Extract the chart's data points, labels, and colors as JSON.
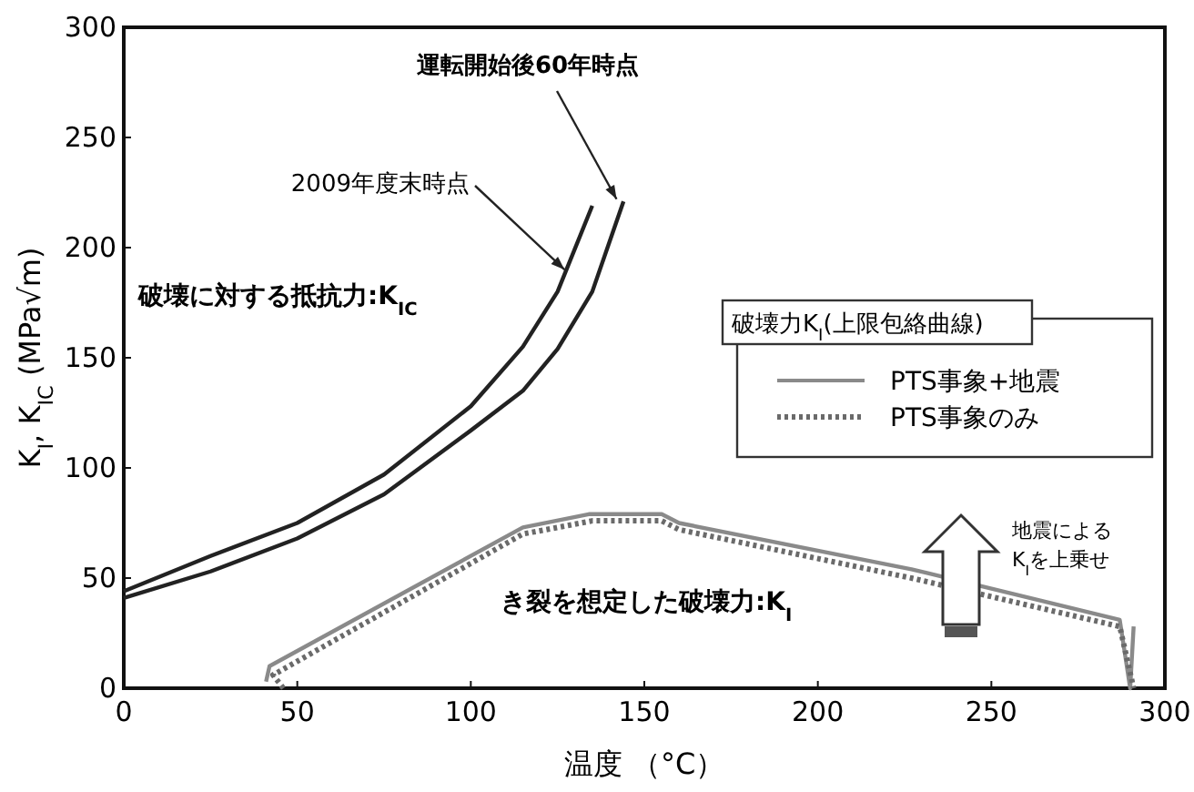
{
  "chart_data": {
    "type": "line",
    "xlabel": "温度 （°C）",
    "ylabel": "K$_{I}$, K$_{IC}$ (MPa√m)",
    "legend_title": "破壊力K$_{I}$(上限包絡曲線)",
    "legend": "right",
    "grid": false,
    "xlim": [
      0,
      300
    ],
    "ylim": [
      0,
      300
    ],
    "xticks": [
      0,
      50,
      100,
      150,
      200,
      250,
      300
    ],
    "yticks": [
      0,
      50,
      100,
      150,
      200,
      250,
      300
    ],
    "series": [
      {
        "color": "#222222",
        "line_style": "solid",
        "x": [
          0,
          25,
          50,
          75,
          100,
          115,
          125,
          135
        ],
        "values": [
          44,
          60,
          75,
          97,
          128,
          155,
          180,
          219
        ]
      },
      {
        "color": "#222222",
        "line_style": "solid",
        "x": [
          0,
          25,
          50,
          75,
          100,
          115,
          125,
          135,
          144
        ],
        "values": [
          41,
          53,
          68,
          88,
          117,
          135,
          154,
          180,
          221
        ]
      },
      {
        "name": "PTS事象+地震",
        "color": "#8a8a8a",
        "line_style": "solid",
        "x": [
          41,
          42,
          115,
          134,
          155,
          160,
          227,
          287,
          290,
          291
        ],
        "values": [
          3,
          10,
          73,
          79,
          79,
          75,
          54,
          31,
          0,
          28
        ]
      },
      {
        "name": "PTS事象のみ",
        "color": "#6a6a6a",
        "line_style": "dotted",
        "x": [
          46,
          43,
          115,
          135,
          155,
          160,
          227,
          287,
          291
        ],
        "values": [
          0,
          6,
          70,
          76,
          76,
          72,
          50,
          28,
          0
        ]
      }
    ],
    "annotations": [
      {
        "text": "2009年度末時点",
        "x": 127,
        "y": 190
      },
      {
        "text": "運転開始後60年時点",
        "x": 142,
        "y": 222
      },
      "破壊に対する抵抗力:K$_{IC}$",
      "き裂を想定した破壊力:K$_{I}$",
      "地震による",
      "K$_{I}$を上乗せ"
    ]
  }
}
